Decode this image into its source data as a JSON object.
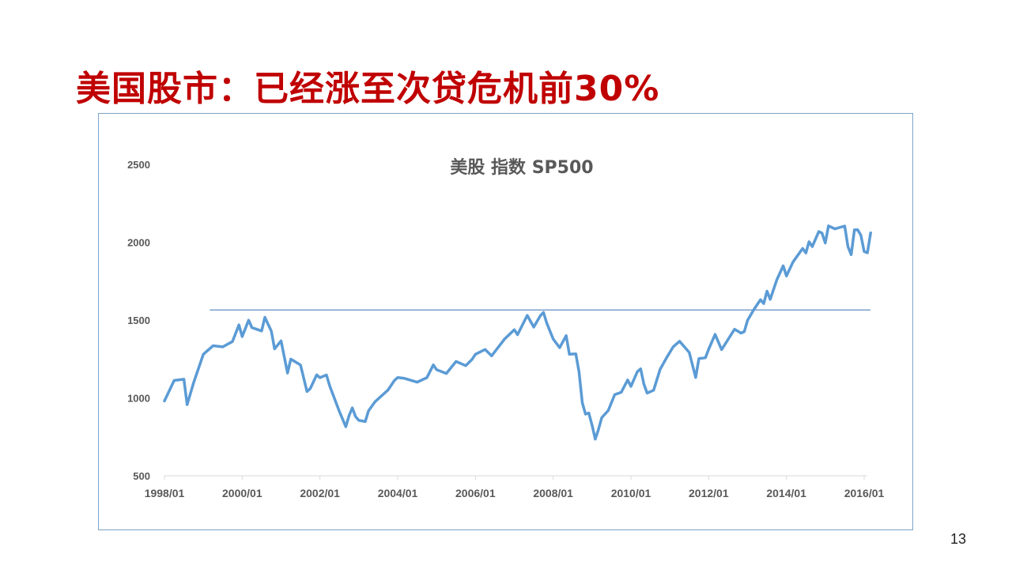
{
  "slide": {
    "title": "美国股市：已经涨至次贷危机前30%",
    "page_number": "13"
  },
  "colors": {
    "title": "#c00000",
    "series": "#5b9bd5",
    "reference_line": "#4f81bd",
    "frame": "#7ba4c8"
  },
  "chart_data": {
    "type": "line",
    "title": "美股 指数 SP500",
    "xlabel": "",
    "ylabel": "",
    "ylim": [
      500,
      2500
    ],
    "yticks": [
      "500",
      "1000",
      "1500",
      "2000",
      "2500"
    ],
    "xticks": [
      "1998/01",
      "2000/01",
      "2002/01",
      "2004/01",
      "2006/01",
      "2008/01",
      "2010/01",
      "2012/01",
      "2014/01",
      "2016/01"
    ],
    "grid": false,
    "legend": "none",
    "reference_line": {
      "value": 1565,
      "from": "1999-03",
      "to": "2016-02"
    },
    "series": [
      {
        "x": [
          "1998-01",
          "1998-04",
          "1998-07",
          "1998-08",
          "1998-10",
          "1999-01",
          "1999-04",
          "1999-07",
          "1999-10",
          "1999-12",
          "2000-01",
          "2000-03",
          "2000-04",
          "2000-07",
          "2000-08",
          "2000-10",
          "2000-11",
          "2001-01",
          "2001-03",
          "2001-04",
          "2001-07",
          "2001-09",
          "2001-10",
          "2001-12",
          "2002-01",
          "2002-03",
          "2002-04",
          "2002-07",
          "2002-09",
          "2002-10",
          "2002-11",
          "2002-12",
          "2003-01",
          "2003-03",
          "2003-04",
          "2003-06",
          "2003-10",
          "2003-12",
          "2004-01",
          "2004-03",
          "2004-07",
          "2004-10",
          "2004-12",
          "2005-01",
          "2005-04",
          "2005-07",
          "2005-10",
          "2005-12",
          "2006-01",
          "2006-04",
          "2006-06",
          "2006-10",
          "2006-12",
          "2007-01",
          "2007-02",
          "2007-05",
          "2007-07",
          "2007-09",
          "2007-10",
          "2007-11",
          "2008-01",
          "2008-03",
          "2008-05",
          "2008-06",
          "2008-08",
          "2008-09",
          "2008-10",
          "2008-11",
          "2008-12",
          "2009-01",
          "2009-02",
          "2009-03",
          "2009-04",
          "2009-06",
          "2009-08",
          "2009-10",
          "2009-12",
          "2010-01",
          "2010-03",
          "2010-04",
          "2010-05",
          "2010-06",
          "2010-08",
          "2010-10",
          "2010-12",
          "2011-02",
          "2011-04",
          "2011-07",
          "2011-09",
          "2011-10",
          "2011-12",
          "2012-01",
          "2012-03",
          "2012-05",
          "2012-09",
          "2012-11",
          "2012-12",
          "2013-01",
          "2013-03",
          "2013-05",
          "2013-06",
          "2013-07",
          "2013-08",
          "2013-10",
          "2013-12",
          "2014-01",
          "2014-03",
          "2014-06",
          "2014-07",
          "2014-08",
          "2014-09",
          "2014-11",
          "2014-12",
          "2015-01",
          "2015-02",
          "2015-04",
          "2015-07",
          "2015-08",
          "2015-09",
          "2015-10",
          "2015-11",
          "2015-12",
          "2016-01",
          "2016-02",
          "2016-03"
        ],
        "values": [
          980,
          1112,
          1120,
          957,
          1098,
          1280,
          1335,
          1328,
          1362,
          1469,
          1394,
          1499,
          1452,
          1430,
          1518,
          1429,
          1315,
          1366,
          1160,
          1249,
          1211,
          1041,
          1060,
          1148,
          1130,
          1147,
          1077,
          912,
          815,
          886,
          936,
          880,
          856,
          848,
          917,
          975,
          1050,
          1112,
          1131,
          1126,
          1101,
          1130,
          1212,
          1181,
          1157,
          1234,
          1207,
          1248,
          1280,
          1311,
          1270,
          1378,
          1418,
          1438,
          1406,
          1530,
          1455,
          1527,
          1549,
          1481,
          1378,
          1323,
          1400,
          1280,
          1283,
          1166,
          969,
          896,
          903,
          826,
          735,
          798,
          873,
          919,
          1021,
          1036,
          1115,
          1074,
          1169,
          1187,
          1089,
          1031,
          1049,
          1183,
          1258,
          1327,
          1364,
          1292,
          1131,
          1253,
          1258,
          1312,
          1408,
          1310,
          1441,
          1416,
          1426,
          1498,
          1569,
          1631,
          1606,
          1686,
          1633,
          1757,
          1848,
          1783,
          1872,
          1960,
          1931,
          2003,
          1972,
          2068,
          2059,
          1995,
          2105,
          2086,
          2104,
          1972,
          1920,
          2079,
          2080,
          2044,
          1940,
          1932,
          2060
        ]
      }
    ]
  }
}
